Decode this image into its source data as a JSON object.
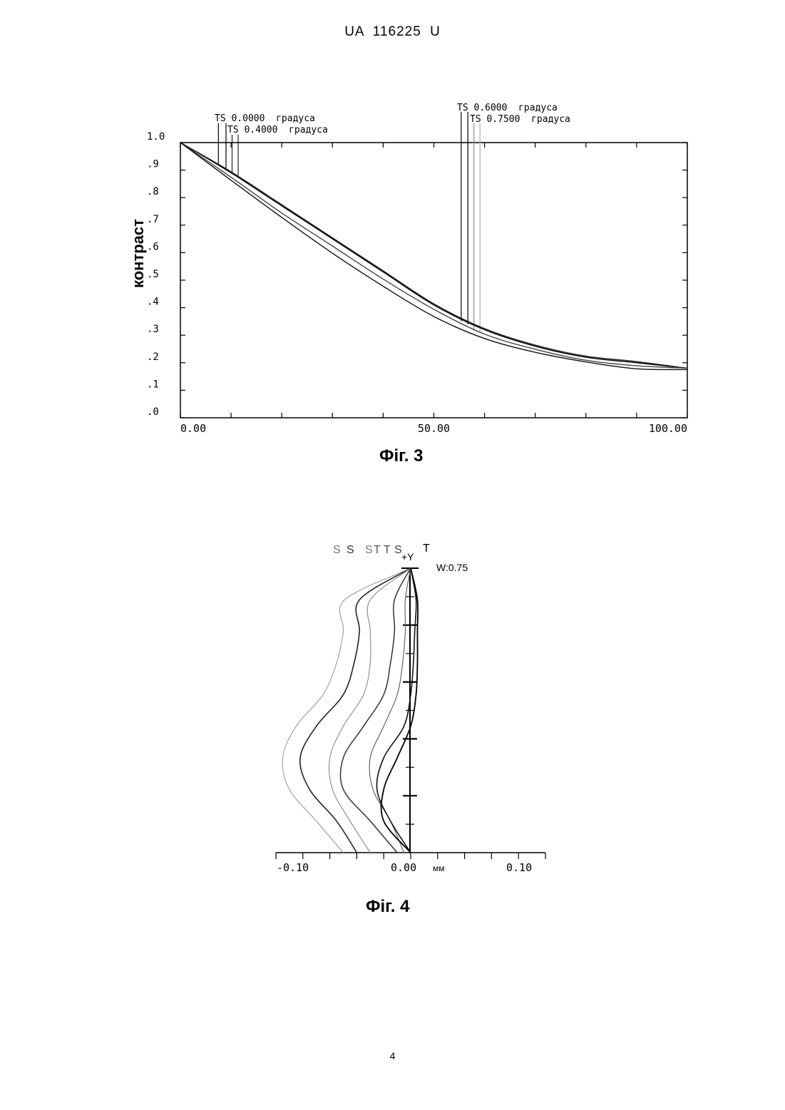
{
  "header": {
    "text": "UA   116225   U"
  },
  "fig3": {
    "caption": "Фіг. 3",
    "legend": [
      "TS 0.0000  градуса",
      "TS 0.4000  градуса",
      "TS 0.6000  градуса",
      "TS 0.7500  градуса"
    ],
    "chart_data": {
      "type": "line",
      "ylabel": "контраст",
      "xlabel": "",
      "xlim": [
        0,
        100
      ],
      "ylim": [
        0,
        1.0
      ],
      "x_ticks": [
        "0.00",
        "50.00",
        "100.00"
      ],
      "y_ticks": [
        "1.0",
        ".9",
        ".8",
        ".7",
        ".6",
        ".5",
        ".4",
        ".3",
        ".2",
        ".1",
        ".0"
      ],
      "series": [
        {
          "name": "TS 0.0000  градуса",
          "x": [
            0,
            10,
            20,
            30,
            40,
            50,
            60,
            70,
            80,
            90,
            100
          ],
          "y": [
            1.0,
            0.89,
            0.77,
            0.65,
            0.53,
            0.41,
            0.32,
            0.26,
            0.22,
            0.2,
            0.18
          ]
        },
        {
          "name": "TS 0.4000  градуса",
          "x": [
            0,
            10,
            20,
            30,
            40,
            50,
            60,
            70,
            80,
            90,
            100
          ],
          "y": [
            1.0,
            0.89,
            0.77,
            0.65,
            0.53,
            0.41,
            0.32,
            0.26,
            0.22,
            0.2,
            0.18
          ]
        },
        {
          "name": "TS 0.6000  градуса",
          "x": [
            0,
            10,
            20,
            30,
            40,
            50,
            60,
            70,
            80,
            90,
            100
          ],
          "y": [
            1.0,
            0.88,
            0.75,
            0.63,
            0.51,
            0.4,
            0.31,
            0.255,
            0.215,
            0.195,
            0.18
          ]
        },
        {
          "name": "TS 0.7500  градуса",
          "x": [
            0,
            10,
            20,
            30,
            40,
            50,
            60,
            70,
            80,
            90,
            100
          ],
          "y": [
            1.0,
            0.875,
            0.74,
            0.61,
            0.49,
            0.38,
            0.3,
            0.25,
            0.215,
            0.19,
            0.175
          ]
        }
      ],
      "marker_x": [
        7.5,
        9.0,
        10.2,
        11.4,
        55.4,
        56.7,
        57.9,
        59.1
      ],
      "grid": false
    }
  },
  "fig4": {
    "caption": "Фіг. 4",
    "top_labels": [
      "S",
      "S",
      "S",
      "T",
      "T",
      "S",
      "T"
    ],
    "y_label": "+Y",
    "w_label": "W:0.75",
    "x_ticks": [
      "-0.10",
      "0.00",
      "0.10"
    ],
    "x_unit": "мм",
    "chart_data": {
      "type": "line",
      "xlim": [
        -0.1,
        0.1
      ],
      "xlabel": "мм",
      "curves": [
        {
          "label": "S",
          "x": [
            -0.05,
            -0.07,
            -0.09,
            -0.095,
            -0.085,
            -0.065,
            -0.055,
            -0.05,
            -0.049,
            -0.0
          ]
        },
        {
          "label": "S",
          "x": [
            -0.04,
            -0.055,
            -0.075,
            -0.082,
            -0.07,
            -0.05,
            -0.042,
            -0.038,
            -0.038,
            -0.0
          ]
        },
        {
          "label": "S",
          "x": [
            -0.03,
            -0.045,
            -0.058,
            -0.06,
            -0.05,
            -0.035,
            -0.03,
            -0.03,
            -0.03,
            -0.0
          ]
        },
        {
          "label": "T",
          "x": [
            -0.01,
            -0.03,
            -0.05,
            -0.05,
            -0.035,
            -0.02,
            -0.015,
            -0.012,
            -0.012,
            -0.0
          ]
        },
        {
          "label": "T",
          "x": [
            -0.005,
            -0.015,
            -0.028,
            -0.03,
            -0.02,
            -0.01,
            -0.006,
            -0.004,
            -0.004,
            -0.0
          ]
        },
        {
          "label": "S",
          "x": [
            0.0,
            -0.015,
            -0.025,
            -0.02,
            -0.005,
            0.0,
            0.002,
            0.003,
            0.004,
            0.0
          ]
        },
        {
          "label": "T",
          "x": [
            0.0,
            -0.02,
            -0.02,
            -0.01,
            0.0,
            0.004,
            0.005,
            0.005,
            0.005,
            0.0
          ]
        }
      ]
    }
  },
  "page_number": "4"
}
